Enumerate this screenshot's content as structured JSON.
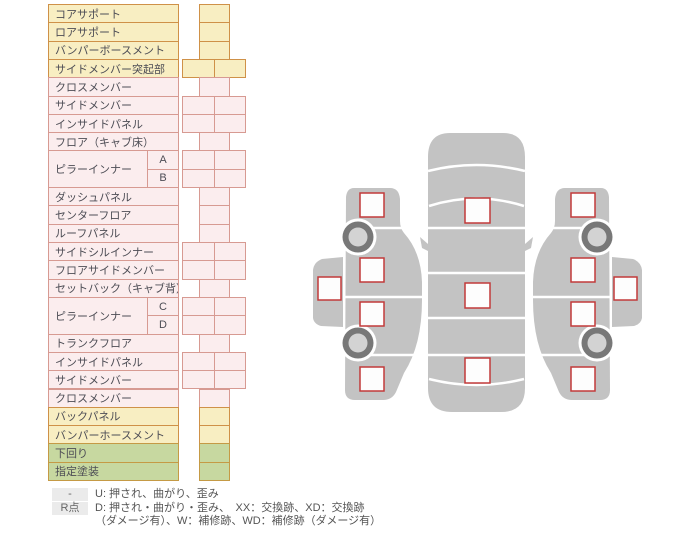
{
  "colors": {
    "yellow_fill": "#f8eec2",
    "yellow_border": "#cf9148",
    "pink_fill": "#fbedee",
    "pink_border": "#d79a92",
    "green_fill": "#c7d8a0",
    "green_border": "#c59a45",
    "text": "#4d4d55",
    "legend_box_bg": "#ebebeb",
    "car_gray": "#c3c3c3",
    "wheel_ring": "#787878",
    "wheel_hub": "#d3d3d3",
    "marker_fill": "#fdfdfd",
    "marker_border": "#c23a3a"
  },
  "parts_table": {
    "groups": [
      {
        "label": "コアサポート",
        "color": "yellow",
        "cells": [
          "single"
        ]
      },
      {
        "label": "ロアサポート",
        "color": "yellow",
        "cells": [
          "single"
        ]
      },
      {
        "label": "バンパーボースメント",
        "color": "yellow",
        "cells": [
          "single"
        ]
      },
      {
        "label": "サイドメンバー突起部",
        "color": "yellow",
        "cells": [
          "double"
        ]
      },
      {
        "label": "クロスメンバー",
        "color": "pink",
        "cells": [
          "single"
        ]
      },
      {
        "label": "サイドメンバー",
        "color": "pink",
        "cells": [
          "double"
        ]
      },
      {
        "label": "インサイドパネル",
        "color": "pink",
        "cells": [
          "double"
        ]
      },
      {
        "label": "フロア（キャブ床）",
        "color": "pink",
        "cells": [
          "single"
        ]
      },
      {
        "label": "ピラーインナー",
        "color": "pink",
        "subs": [
          "A",
          "B"
        ],
        "cells": [
          "double",
          "double"
        ]
      },
      {
        "label": "ダッシュパネル",
        "color": "pink",
        "cells": [
          "single"
        ]
      },
      {
        "label": "センターフロア",
        "color": "pink",
        "cells": [
          "single"
        ]
      },
      {
        "label": "ルーフパネル",
        "color": "pink",
        "cells": [
          "single"
        ]
      },
      {
        "label": "サイドシルインナー",
        "color": "pink",
        "cells": [
          "double"
        ]
      },
      {
        "label": "フロアサイドメンバー",
        "color": "pink",
        "cells": [
          "double"
        ]
      },
      {
        "label": "セットバック（キャブ背）",
        "color": "pink",
        "cells": [
          "single"
        ]
      },
      {
        "label": "ピラーインナー",
        "color": "pink",
        "subs": [
          "C",
          "D"
        ],
        "cells": [
          "double",
          "double"
        ]
      },
      {
        "label": "トランクフロア",
        "color": "pink",
        "cells": [
          "single"
        ]
      },
      {
        "label": "インサイドパネル",
        "color": "pink",
        "cells": [
          "double"
        ]
      },
      {
        "label": "サイドメンバー",
        "color": "pink",
        "cells": [
          "double"
        ]
      },
      {
        "label": "クロスメンバー",
        "color": "pink",
        "cells": [
          "single"
        ]
      },
      {
        "label": "バックパネル",
        "color": "yellow",
        "cells": [
          "single"
        ]
      },
      {
        "label": "バンパーホースメント",
        "color": "yellow",
        "cells": [
          "single"
        ]
      },
      {
        "label": "下回り",
        "color": "green",
        "cells": [
          "single"
        ]
      },
      {
        "label": "指定塗装",
        "color": "green",
        "cells": [
          "single"
        ]
      }
    ]
  },
  "legend": {
    "rows": [
      {
        "marker": "-",
        "lines": [
          "U: 押され、曲がり、歪み"
        ]
      },
      {
        "marker": "R点",
        "lines": [
          "D: 押され・曲がり・歪み、　XX：交換跡、XD：交換跡",
          "（ダメージ有）、W：補修跡、WD：補修跡（ダメージ有）"
        ]
      }
    ]
  },
  "diagram": {
    "views": [
      "left-side-view",
      "top-view",
      "right-side-view"
    ],
    "markers": [
      "marker-left-1",
      "marker-left-2",
      "marker-left-3",
      "marker-left-4",
      "marker-left-outer",
      "marker-top-front",
      "marker-top-center",
      "marker-top-rear",
      "marker-right-1",
      "marker-right-2",
      "marker-right-3",
      "marker-right-4",
      "marker-right-outer"
    ]
  }
}
